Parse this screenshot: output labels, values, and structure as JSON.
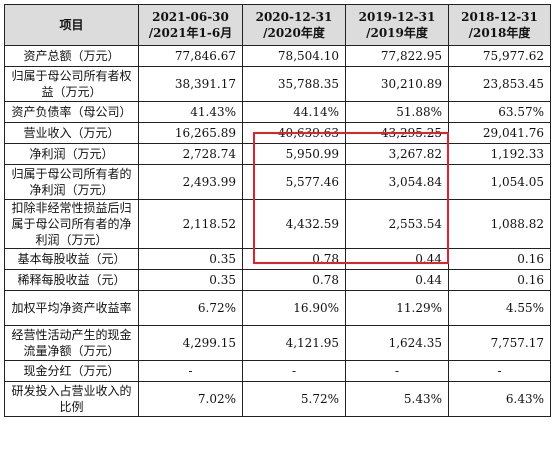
{
  "table": {
    "headers": [
      {
        "line1": "项目",
        "line2": ""
      },
      {
        "line1": "2021-06-30",
        "line2": "/2021年1-6月"
      },
      {
        "line1": "2020-12-31",
        "line2": "/2020年度"
      },
      {
        "line1": "2019-12-31",
        "line2": "/2019年度"
      },
      {
        "line1": "2018-12-31",
        "line2": "/2018年度"
      }
    ],
    "rows": [
      {
        "label": "资产总额（万元）",
        "values": [
          "77,846.67",
          "78,504.10",
          "77,822.95",
          "75,977.62"
        ]
      },
      {
        "label": "归属于母公司所有者权益（万元）",
        "values": [
          "38,391.17",
          "35,788.35",
          "30,210.89",
          "23,853.45"
        ]
      },
      {
        "label": "资产负债率（母公司）",
        "values": [
          "41.43%",
          "44.14%",
          "51.88%",
          "63.57%"
        ]
      },
      {
        "label": "营业收入（万元）",
        "values": [
          "16,265.89",
          "40,639.63",
          "43,295.25",
          "29,041.76"
        ]
      },
      {
        "label": "净利润（万元）",
        "values": [
          "2,728.74",
          "5,950.99",
          "3,267.82",
          "1,192.33"
        ]
      },
      {
        "label": "归属于母公司所有者的净利润（万元）",
        "values": [
          "2,493.99",
          "5,577.46",
          "3,054.84",
          "1,054.05"
        ]
      },
      {
        "label": "扣除非经常性损益后归属于母公司所有者的净利润（万元）",
        "values": [
          "2,118.52",
          "4,432.59",
          "2,553.54",
          "1,088.82"
        ]
      },
      {
        "label": "基本每股收益（元）",
        "values": [
          "0.35",
          "0.78",
          "0.44",
          "0.16"
        ]
      },
      {
        "label": "稀释每股收益（元）",
        "values": [
          "0.35",
          "0.78",
          "0.44",
          "0.16"
        ]
      },
      {
        "label": "加权平均净资产收益率",
        "values": [
          "6.72%",
          "16.90%",
          "11.29%",
          "4.55%"
        ]
      },
      {
        "label": "经营性活动产生的现金流量净额（万元）",
        "values": [
          "4,299.15",
          "4,121.95",
          "1,624.35",
          "7,757.17"
        ]
      },
      {
        "label": "现金分红（万元）",
        "values": [
          "-",
          "-",
          "-",
          "-"
        ]
      },
      {
        "label": "研发投入占营业收入的比例",
        "values": [
          "7.02%",
          "5.72%",
          "5.43%",
          "6.43%"
        ]
      }
    ]
  },
  "colors": {
    "header_bg": "#dcdcdc",
    "highlight_border": "#e0232b",
    "grid": "#222222"
  }
}
